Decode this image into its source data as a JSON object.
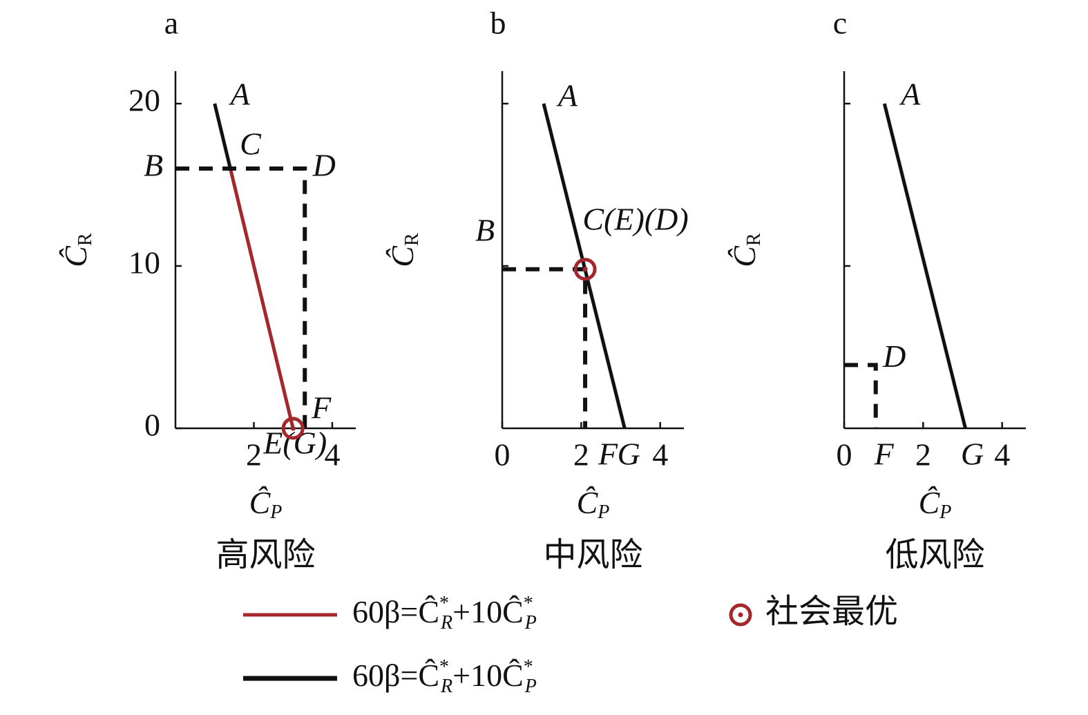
{
  "chart_data": [
    {
      "type": "line",
      "panel_label": "a",
      "subtitle": "高风险",
      "xlabel": {
        "base": "Ĉ",
        "sub": "P"
      },
      "ylabel": {
        "base": "Ĉ",
        "sub": "R"
      },
      "xlim": [
        0,
        4.6
      ],
      "ylim": [
        0,
        22
      ],
      "xticks": [
        2,
        4
      ],
      "yticks": [
        0,
        10,
        20
      ],
      "show_xtick_labels": true,
      "show_ytick_labels": true,
      "series": [
        {
          "color": "#111111",
          "style": "solid",
          "x": [
            1,
            1.4
          ],
          "values": [
            20,
            16
          ]
        },
        {
          "color": "#a3272b",
          "style": "solid",
          "x": [
            1.4,
            3
          ],
          "values": [
            16,
            0
          ]
        },
        {
          "color": "#111111",
          "style": "dashed",
          "x": [
            0,
            3.3,
            3.3
          ],
          "values": [
            16,
            16,
            0
          ]
        }
      ],
      "points": [
        {
          "label": "A",
          "x": 1,
          "y": 20
        },
        {
          "label": "B",
          "x": 0,
          "y": 16
        },
        {
          "label": "C",
          "x": 1.4,
          "y": 16
        },
        {
          "label": "D",
          "x": 3.3,
          "y": 16
        },
        {
          "label": "F",
          "x": 3.3,
          "y": 0
        },
        {
          "label": "E(G)",
          "x": 3,
          "y": 0
        }
      ],
      "optimum": {
        "x": 3,
        "y": 0,
        "color": "#a3272b"
      }
    },
    {
      "type": "line",
      "panel_label": "b",
      "subtitle": "中风险",
      "xlabel": {
        "base": "Ĉ",
        "sub": "P"
      },
      "ylabel": {
        "base": "Ĉ",
        "sub": "R"
      },
      "xlim": [
        0,
        4.6
      ],
      "ylim": [
        0,
        22
      ],
      "xticks": [
        0,
        2,
        4
      ],
      "yticks": [
        10,
        20
      ],
      "show_xtick_labels": true,
      "show_ytick_labels": false,
      "series": [
        {
          "color": "#111111",
          "style": "solid",
          "x": [
            1.05,
            3.1
          ],
          "values": [
            20,
            0
          ]
        },
        {
          "color": "#111111",
          "style": "dashed",
          "x": [
            0,
            2.1,
            2.1
          ],
          "values": [
            9.8,
            9.8,
            0
          ]
        }
      ],
      "points": [
        {
          "label": "A",
          "x": 1.05,
          "y": 20
        },
        {
          "label": "B",
          "x": 0,
          "y": 9.8
        },
        {
          "label": "C(E)(D)",
          "x": 2.1,
          "y": 9.8
        },
        {
          "label": "F",
          "x": 2.1,
          "y": 0
        },
        {
          "label": "G",
          "x": 3.1,
          "y": 0
        }
      ],
      "optimum": {
        "x": 2.1,
        "y": 9.8,
        "color": "#a3272b"
      }
    },
    {
      "type": "line",
      "panel_label": "c",
      "subtitle": "低风险",
      "xlabel": {
        "base": "Ĉ",
        "sub": "P"
      },
      "ylabel": {
        "base": "Ĉ",
        "sub": "R"
      },
      "xlim": [
        0,
        4.6
      ],
      "ylim": [
        0,
        22
      ],
      "xticks": [
        0,
        2,
        4
      ],
      "yticks": [
        10,
        20
      ],
      "show_xtick_labels": true,
      "show_ytick_labels": false,
      "series": [
        {
          "color": "#111111",
          "style": "solid",
          "x": [
            1.02,
            3.07
          ],
          "values": [
            20,
            0
          ]
        },
        {
          "color": "#111111",
          "style": "dashed",
          "x": [
            0,
            0.8,
            0.8
          ],
          "values": [
            3.9,
            3.9,
            0
          ]
        }
      ],
      "points": [
        {
          "label": "A",
          "x": 1.02,
          "y": 20
        },
        {
          "label": "D",
          "x": 0.8,
          "y": 3.9
        },
        {
          "label": "F",
          "x": 0.8,
          "y": 0
        },
        {
          "label": "G",
          "x": 3.07,
          "y": 0
        }
      ]
    }
  ],
  "legend": {
    "entries": [
      {
        "color": "#a3272b",
        "label": [
          "60β=Ĉ",
          "*",
          "R",
          "+10Ĉ",
          "*",
          "P"
        ]
      },
      {
        "color": "#111111",
        "label": [
          "60β=Ĉ",
          "*",
          "R",
          "+10Ĉ",
          "*",
          "P"
        ]
      }
    ],
    "optimum_label": "社会最优"
  }
}
